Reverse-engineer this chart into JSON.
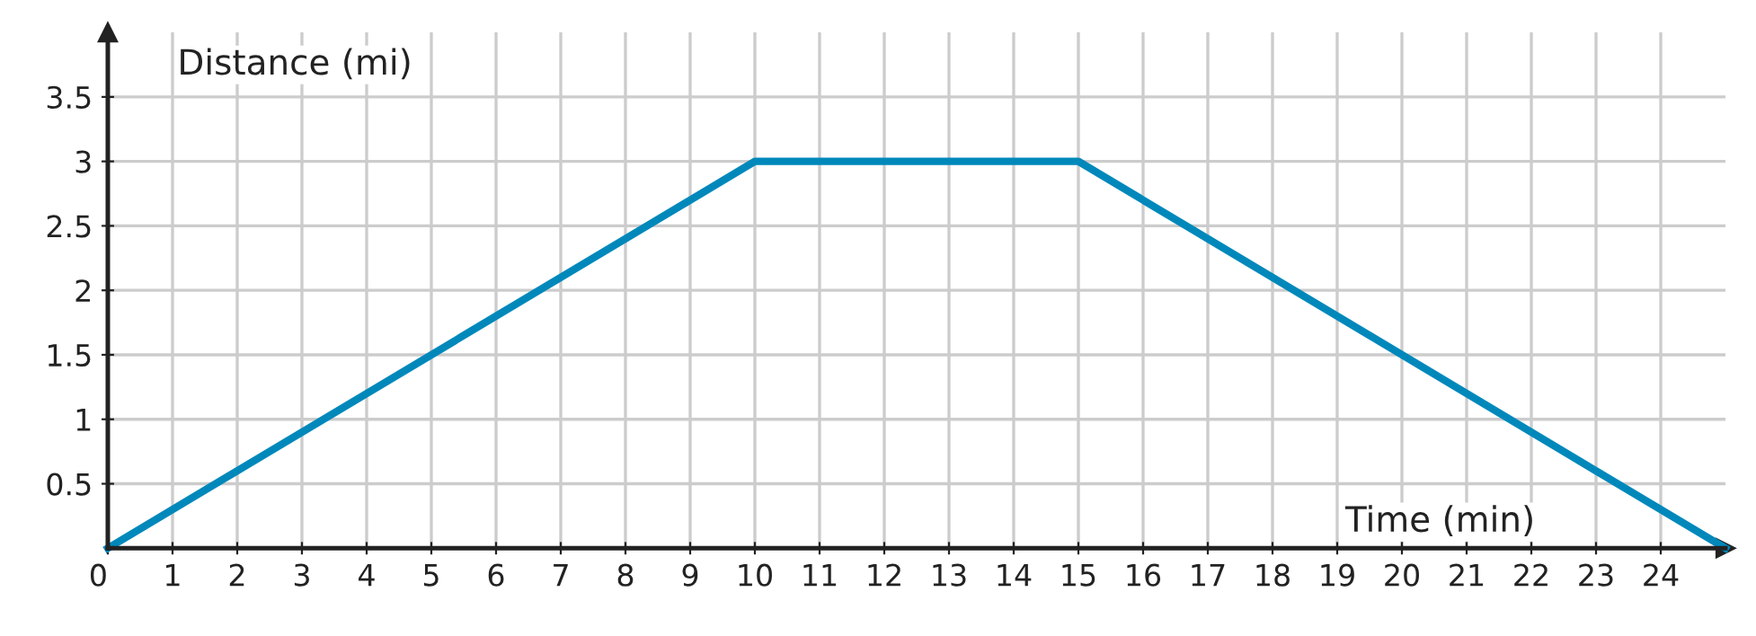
{
  "chart_data": {
    "type": "line",
    "xlabel": "Time (min)",
    "ylabel": "Distance (mi)",
    "x": [
      0,
      10,
      15,
      25
    ],
    "series": [
      {
        "color": "#0088bb",
        "values": [
          0,
          3,
          3,
          0
        ]
      }
    ],
    "xlim": [
      0,
      25
    ],
    "ylim": [
      0,
      4
    ],
    "xticks": [
      0,
      1,
      2,
      3,
      4,
      5,
      6,
      7,
      8,
      9,
      10,
      11,
      12,
      13,
      14,
      15,
      16,
      17,
      18,
      19,
      20,
      21,
      22,
      23,
      24
    ],
    "yticks": [
      0.5,
      1,
      1.5,
      2,
      2.5,
      3,
      3.5
    ],
    "grid": true,
    "marker": "none",
    "line_style": "solid"
  }
}
